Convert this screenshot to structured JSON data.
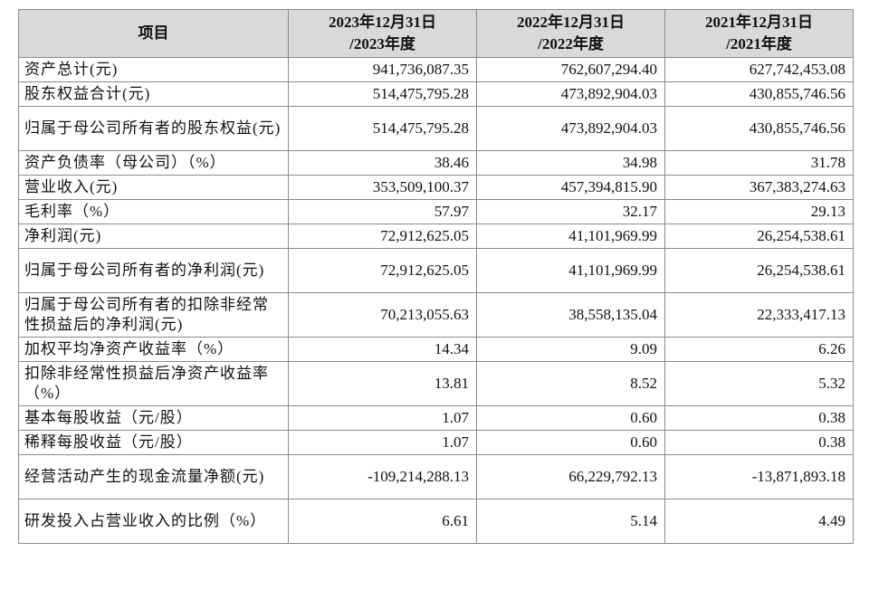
{
  "table": {
    "headers": [
      {
        "line1": "项目",
        "line2": ""
      },
      {
        "line1": "2023年12月31日",
        "line2": "/2023年度"
      },
      {
        "line1": "2022年12月31日",
        "line2": "/2022年度"
      },
      {
        "line1": "2021年12月31日",
        "line2": "/2021年度"
      }
    ],
    "rows": [
      {
        "item": "资产总计(元)",
        "v2023": "941,736,087.35",
        "v2022": "762,607,294.40",
        "v2021": "627,742,453.08"
      },
      {
        "item": "股东权益合计(元)",
        "v2023": "514,475,795.28",
        "v2022": "473,892,904.03",
        "v2021": "430,855,746.56"
      },
      {
        "item": "归属于母公司所有者的股东权益(元)",
        "v2023": "514,475,795.28",
        "v2022": "473,892,904.03",
        "v2021": "430,855,746.56"
      },
      {
        "item": "资产负债率（母公司）（%）",
        "v2023": "38.46",
        "v2022": "34.98",
        "v2021": "31.78"
      },
      {
        "item": "营业收入(元)",
        "v2023": "353,509,100.37",
        "v2022": "457,394,815.90",
        "v2021": "367,383,274.63"
      },
      {
        "item": "毛利率（%）",
        "v2023": "57.97",
        "v2022": "32.17",
        "v2021": "29.13"
      },
      {
        "item": "净利润(元)",
        "v2023": "72,912,625.05",
        "v2022": "41,101,969.99",
        "v2021": "26,254,538.61"
      },
      {
        "item": "归属于母公司所有者的净利润(元)",
        "v2023": "72,912,625.05",
        "v2022": "41,101,969.99",
        "v2021": "26,254,538.61"
      },
      {
        "item": "归属于母公司所有者的扣除非经常性损益后的净利润(元)",
        "v2023": "70,213,055.63",
        "v2022": "38,558,135.04",
        "v2021": "22,333,417.13"
      },
      {
        "item": "加权平均净资产收益率（%）",
        "v2023": "14.34",
        "v2022": "9.09",
        "v2021": "6.26"
      },
      {
        "item": "扣除非经常性损益后净资产收益率（%）",
        "v2023": "13.81",
        "v2022": "8.52",
        "v2021": "5.32"
      },
      {
        "item": "基本每股收益（元/股）",
        "v2023": "1.07",
        "v2022": "0.60",
        "v2021": "0.38"
      },
      {
        "item": "稀释每股收益（元/股）",
        "v2023": "1.07",
        "v2022": "0.60",
        "v2021": "0.38"
      },
      {
        "item": "经营活动产生的现金流量净额(元)",
        "v2023": "-109,214,288.13",
        "v2022": "66,229,792.13",
        "v2021": "-13,871,893.18"
      },
      {
        "item": "研发投入占营业收入的比例（%）",
        "v2023": "6.61",
        "v2022": "5.14",
        "v2021": "4.49"
      }
    ]
  },
  "colors": {
    "header_background": "#d9d9d9",
    "border": "#8a8a8a",
    "text": "#111111"
  }
}
